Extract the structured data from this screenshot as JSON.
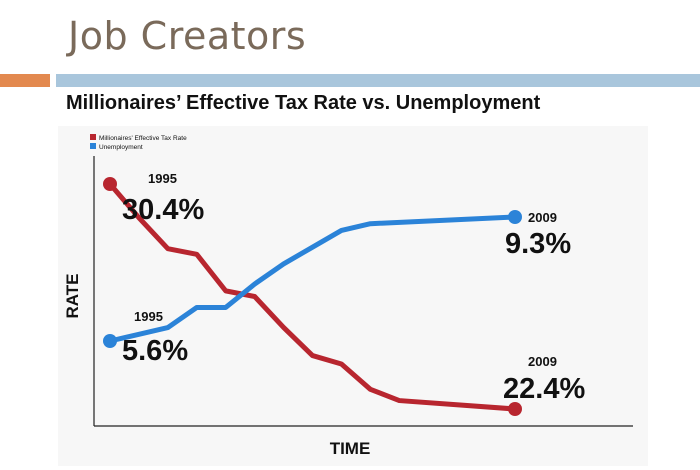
{
  "slide": {
    "title": "Job Creators"
  },
  "chart_data": {
    "type": "line",
    "title": "Millionaires’ Effective Tax Rate vs. Unemployment",
    "xlabel": "TIME",
    "ylabel": "RATE",
    "legend_position": "top-left",
    "series": [
      {
        "name": "Millionaires' Effective Tax Rate",
        "color": "#b8262f",
        "points": [
          [
            1995,
            30.4
          ],
          [
            1996,
            29.2
          ],
          [
            1997,
            28.1
          ],
          [
            1998,
            27.9
          ],
          [
            1999,
            26.6
          ],
          [
            2000,
            26.4
          ],
          [
            2001,
            25.3
          ],
          [
            2002,
            24.3
          ],
          [
            2003,
            24.0
          ],
          [
            2004,
            23.1
          ],
          [
            2005,
            22.7
          ],
          [
            2009,
            22.4
          ]
        ],
        "start_year_label": "1995",
        "start_value_label": "30.4%",
        "end_year_label": "2009",
        "end_value_label": "22.4%"
      },
      {
        "name": "Unemployment",
        "color": "#2b83d8",
        "points": [
          [
            1995,
            5.6
          ],
          [
            1996,
            5.8
          ],
          [
            1997,
            6.0
          ],
          [
            1998,
            6.6
          ],
          [
            1999,
            6.6
          ],
          [
            2000,
            7.3
          ],
          [
            2001,
            7.9
          ],
          [
            2002,
            8.4
          ],
          [
            2003,
            8.9
          ],
          [
            2004,
            9.1
          ],
          [
            2009,
            9.3
          ]
        ],
        "start_year_label": "1995",
        "start_value_label": "5.6%",
        "end_year_label": "2009",
        "end_value_label": "9.3%"
      }
    ]
  }
}
